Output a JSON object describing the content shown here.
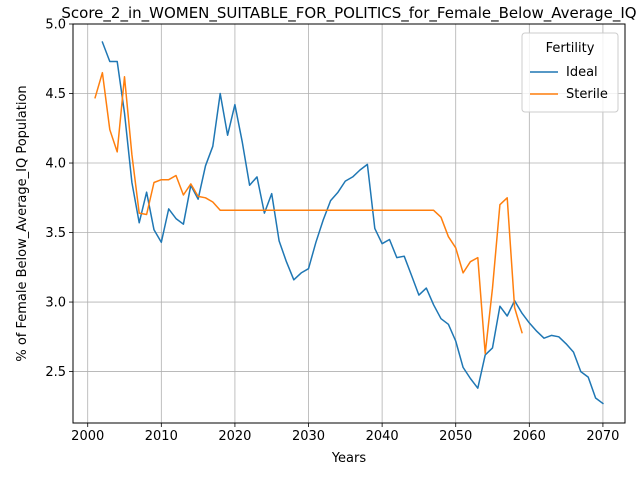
{
  "chart_data": {
    "type": "line",
    "title": "Score_2_in_WOMEN_SUITABLE_FOR_POLITICS_for_Female_Below_Average_IQ",
    "xlabel": "Years",
    "ylabel": "% of Female Below_Average_IQ Population",
    "xlim": [
      1998,
      2073
    ],
    "ylim": [
      2.13,
      5.0
    ],
    "xticks": [
      2000,
      2010,
      2020,
      2030,
      2040,
      2050,
      2060,
      2070
    ],
    "xtick_labels": [
      "2000",
      "2010",
      "2020",
      "2030",
      "2040",
      "2050",
      "2060",
      "2070"
    ],
    "yticks": [
      2.5,
      3.0,
      3.5,
      4.0,
      4.5,
      5.0
    ],
    "ytick_labels": [
      "2.5",
      "3.0",
      "3.5",
      "4.0",
      "4.5",
      "5.0"
    ],
    "grid": true,
    "legend": {
      "title": "Fertility",
      "position": "top-right"
    },
    "series": [
      {
        "name": "Ideal",
        "color": "#1f77b4",
        "x": [
          2002,
          2003,
          2004,
          2005,
          2006,
          2007,
          2008,
          2009,
          2010,
          2011,
          2012,
          2013,
          2014,
          2015,
          2016,
          2017,
          2018,
          2019,
          2020,
          2021,
          2022,
          2023,
          2024,
          2025,
          2026,
          2027,
          2028,
          2029,
          2030,
          2031,
          2032,
          2033,
          2034,
          2035,
          2036,
          2037,
          2038,
          2039,
          2040,
          2041,
          2042,
          2043,
          2044,
          2045,
          2046,
          2047,
          2048,
          2049,
          2050,
          2051,
          2052,
          2053,
          2054,
          2055,
          2056,
          2057,
          2058,
          2059,
          2060,
          2061,
          2062,
          2063,
          2064,
          2065,
          2066,
          2067,
          2068,
          2069,
          2070
        ],
        "values": [
          4.87,
          4.73,
          4.73,
          4.36,
          3.86,
          3.57,
          3.79,
          3.52,
          3.43,
          3.67,
          3.6,
          3.56,
          3.84,
          3.74,
          3.98,
          4.12,
          4.5,
          4.2,
          4.42,
          4.15,
          3.84,
          3.9,
          3.64,
          3.78,
          3.44,
          3.29,
          3.16,
          3.21,
          3.24,
          3.43,
          3.59,
          3.73,
          3.79,
          3.87,
          3.9,
          3.95,
          3.99,
          3.53,
          3.42,
          3.45,
          3.32,
          3.33,
          3.19,
          3.05,
          3.1,
          2.98,
          2.88,
          2.84,
          2.72,
          2.53,
          2.45,
          2.38,
          2.62,
          2.67,
          2.97,
          2.9,
          3.01,
          2.92,
          2.85,
          2.79,
          2.74,
          2.76,
          2.75,
          2.7,
          2.64,
          2.5,
          2.46,
          2.31,
          2.27
        ]
      },
      {
        "name": "Sterile",
        "color": "#ff7f0e",
        "x": [
          2001,
          2002,
          2003,
          2004,
          2005,
          2006,
          2007,
          2008,
          2009,
          2010,
          2011,
          2012,
          2013,
          2014,
          2015,
          2016,
          2017,
          2018,
          2019,
          2020,
          2021,
          2022,
          2023,
          2024,
          2025,
          2026,
          2027,
          2028,
          2029,
          2030,
          2031,
          2032,
          2033,
          2034,
          2035,
          2036,
          2037,
          2038,
          2039,
          2040,
          2041,
          2042,
          2043,
          2044,
          2045,
          2046,
          2047,
          2048,
          2049,
          2050,
          2051,
          2052,
          2053,
          2054,
          2055,
          2056,
          2057,
          2058,
          2059
        ],
        "values": [
          4.47,
          4.65,
          4.24,
          4.08,
          4.62,
          4.06,
          3.64,
          3.63,
          3.86,
          3.88,
          3.88,
          3.91,
          3.77,
          3.85,
          3.76,
          3.75,
          3.72,
          3.66,
          3.66,
          3.66,
          3.66,
          3.66,
          3.66,
          3.66,
          3.66,
          3.66,
          3.66,
          3.66,
          3.66,
          3.66,
          3.66,
          3.66,
          3.66,
          3.66,
          3.66,
          3.66,
          3.66,
          3.66,
          3.66,
          3.66,
          3.66,
          3.66,
          3.66,
          3.66,
          3.66,
          3.66,
          3.66,
          3.61,
          3.47,
          3.39,
          3.21,
          3.29,
          3.32,
          2.63,
          3.1,
          3.7,
          3.75,
          2.96,
          2.78
        ]
      }
    ]
  }
}
